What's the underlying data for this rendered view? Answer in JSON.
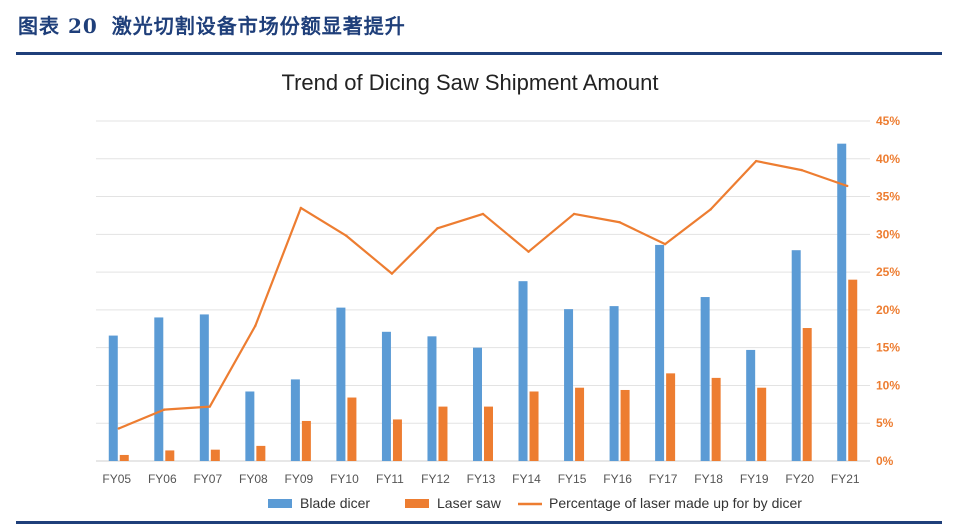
{
  "figure_label": "图表 20",
  "figure_caption": "激光切割设备市场份额显著提升",
  "chart_data": {
    "type": "bar+line",
    "title": "Trend of Dicing Saw Shipment Amount",
    "categories": [
      "FY05",
      "FY06",
      "FY07",
      "FY08",
      "FY09",
      "FY10",
      "FY11",
      "FY12",
      "FY13",
      "FY14",
      "FY15",
      "FY16",
      "FY17",
      "FY18",
      "FY19",
      "FY20",
      "FY21"
    ],
    "series": [
      {
        "name": "Blade dicer",
        "type": "bar",
        "color": "#5b9bd5",
        "values": [
          16.6,
          19.0,
          19.4,
          9.2,
          10.8,
          20.3,
          17.1,
          16.5,
          15.0,
          23.8,
          20.1,
          20.5,
          28.6,
          21.7,
          14.7,
          27.9,
          42.0
        ]
      },
      {
        "name": "Laser saw",
        "type": "bar",
        "color": "#ed7d31",
        "values": [
          0.8,
          1.4,
          1.5,
          2.0,
          5.3,
          8.4,
          5.5,
          7.2,
          7.2,
          9.2,
          9.7,
          9.4,
          11.6,
          11.0,
          9.7,
          17.6,
          24.0
        ]
      },
      {
        "name": "Percentage of laser made up for by dicer",
        "type": "line",
        "color": "#ed7d31",
        "axis": "right",
        "values": [
          4.3,
          6.8,
          7.2,
          17.9,
          33.5,
          29.8,
          24.8,
          30.8,
          32.7,
          27.7,
          32.7,
          31.6,
          28.7,
          33.3,
          39.7,
          38.5,
          36.4
        ]
      }
    ],
    "y_right_ticks": [
      "0%",
      "5%",
      "10%",
      "15%",
      "20%",
      "25%",
      "30%",
      "35%",
      "40%",
      "45%"
    ],
    "y_right_range": [
      0,
      45
    ],
    "y_left_range": [
      0,
      45
    ],
    "grid": true,
    "legend_position": "bottom"
  }
}
